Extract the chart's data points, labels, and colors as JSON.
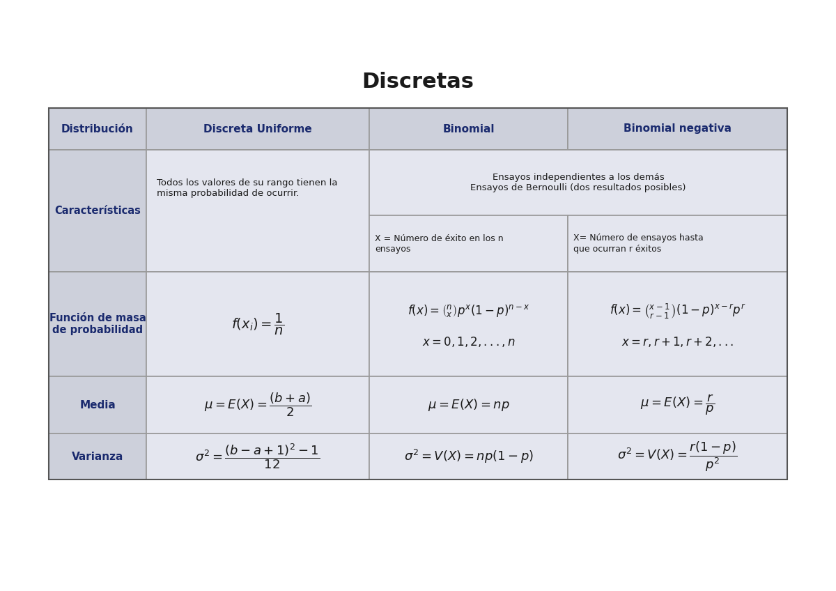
{
  "title": "Discretas",
  "title_fontsize": 22,
  "title_color": "#1a1a1a",
  "header_bg": "#cdd0db",
  "cell_bg": "#e4e6ef",
  "header_text_color": "#1a2a6e",
  "body_text_color": "#1a1a1a",
  "border_color": "#999999",
  "headers": [
    "Distribución",
    "Discreta Uniforme",
    "Binomial",
    "Binomial negativa"
  ],
  "fig_width": 12.0,
  "fig_height": 8.48
}
